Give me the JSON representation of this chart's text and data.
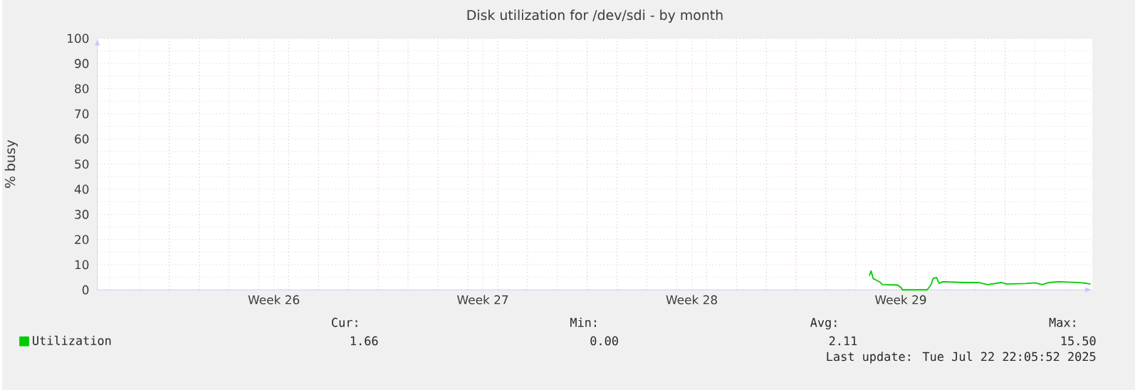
{
  "chart_data": {
    "type": "line",
    "title": "Disk utilization for /dev/sdi - by month",
    "ylabel": "% busy",
    "x": [
      "2025-07-15T10:43",
      "2025-07-15T12:10",
      "2025-07-15T13:50",
      "2025-07-15T16:29",
      "2025-07-15T18:53",
      "2025-07-15T21:17",
      "2025-07-16T09:31",
      "2025-07-16T12:38",
      "2025-07-16T13:22",
      "2025-07-17T09:17",
      "2025-07-17T12:10",
      "2025-07-17T14:05",
      "2025-07-17T16:43",
      "2025-07-17T18:53",
      "2025-07-17T21:46",
      "2025-07-18T14:48",
      "2025-07-19T02:19",
      "2025-07-19T09:46",
      "2025-07-19T21:17",
      "2025-07-20T01:07",
      "2025-07-20T16:29",
      "2025-07-20T23:55",
      "2025-07-21T05:41",
      "2025-07-21T11:26",
      "2025-07-21T18:53",
      "2025-07-22T06:24",
      "2025-07-22T14:05",
      "2025-07-22T20:34"
    ],
    "series": [
      {
        "name": "Utilization",
        "color": "#00cc00",
        "values": [
          5.6,
          7.5,
          4.5,
          3.8,
          3.2,
          2.1,
          1.9,
          0.7,
          0,
          0,
          1.9,
          4.5,
          4.9,
          2.6,
          3.2,
          2.9,
          2.9,
          2.1,
          2.9,
          2.3,
          2.5,
          2.8,
          2.1,
          2.9,
          3.2,
          3.0,
          2.8,
          2.3
        ]
      }
    ],
    "xlim": [
      "2025-06-19T14:05",
      "2025-07-22T22:05"
    ],
    "ylim": [
      0,
      100
    ],
    "xticks": [
      {
        "value": "2025-06-22T00:00",
        "label": null
      },
      {
        "value": "2025-06-25T12:00",
        "label": "Week 26"
      },
      {
        "value": "2025-06-29T00:00",
        "label": null
      },
      {
        "value": "2025-07-02T12:00",
        "label": "Week 27"
      },
      {
        "value": "2025-07-06T00:00",
        "label": null
      },
      {
        "value": "2025-07-09T12:00",
        "label": "Week 28"
      },
      {
        "value": "2025-07-13T00:00",
        "label": null
      },
      {
        "value": "2025-07-16T12:00",
        "label": "Week 29"
      },
      {
        "value": "2025-07-20T00:00",
        "label": null
      }
    ],
    "yticks": [
      0,
      10,
      20,
      30,
      40,
      50,
      60,
      70,
      80,
      90,
      100
    ],
    "grid": true,
    "legend": "bottom left",
    "annotations": [
      "Cur:",
      "1.66",
      "Min:",
      "0.00",
      "Avg:",
      "2.11",
      "Max:",
      "15.50",
      "Last update: Tue Jul 22 22:05:52 2025"
    ]
  }
}
